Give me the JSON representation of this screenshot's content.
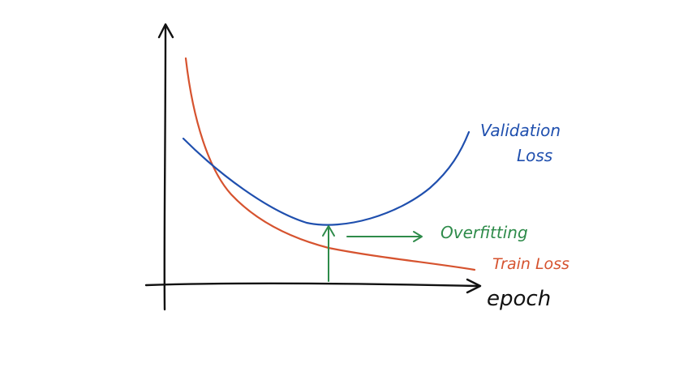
{
  "diagram": {
    "x_axis_label": "epoch",
    "curves": {
      "validation": {
        "label_line1": "Validation",
        "label_line2": "Loss",
        "color": "#1f4fae"
      },
      "train": {
        "label": "Train Loss",
        "color": "#d6532f"
      }
    },
    "annotation": {
      "label": "Overfitting",
      "color": "#2e8b4a"
    },
    "axis_color": "#111111"
  }
}
